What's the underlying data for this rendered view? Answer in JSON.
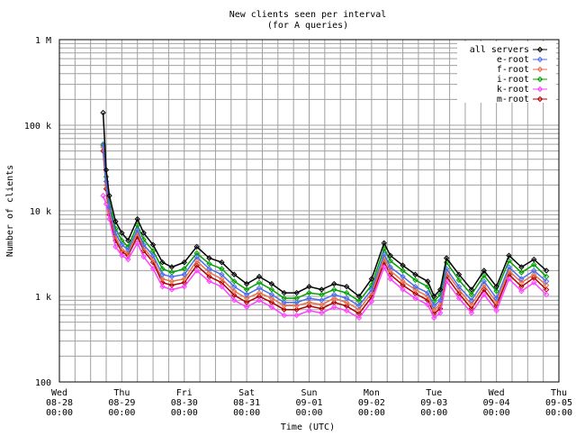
{
  "chart_data": {
    "type": "line",
    "title": "New clients seen per interval",
    "subtitle": "(for A queries)",
    "xlabel": "Time (UTC)",
    "ylabel": "Number of clients",
    "yscale": "log",
    "ylim": [
      100,
      1000000
    ],
    "xlim": [
      "2013-08-28 00:00",
      "2013-09-05 00:00"
    ],
    "grid": true,
    "legend_position": "top-right",
    "y_ticks": [
      {
        "value": 100,
        "label": "100"
      },
      {
        "value": 1000,
        "label": "1 k"
      },
      {
        "value": 10000,
        "label": "10 k"
      },
      {
        "value": 100000,
        "label": "100 k"
      },
      {
        "value": 1000000,
        "label": "1 M"
      }
    ],
    "x_ticks": [
      {
        "day": 0,
        "lines": [
          "Wed",
          "08-28",
          "00:00"
        ]
      },
      {
        "day": 1,
        "lines": [
          "Thu",
          "08-29",
          "00:00"
        ]
      },
      {
        "day": 2,
        "lines": [
          "Fri",
          "08-30",
          "00:00"
        ]
      },
      {
        "day": 3,
        "lines": [
          "Sat",
          "08-31",
          "00:00"
        ]
      },
      {
        "day": 4,
        "lines": [
          "Sun",
          "09-01",
          "00:00"
        ]
      },
      {
        "day": 5,
        "lines": [
          "Mon",
          "09-02",
          "00:00"
        ]
      },
      {
        "day": 6,
        "lines": [
          "Tue",
          "09-03",
          "00:00"
        ]
      },
      {
        "day": 7,
        "lines": [
          "Wed",
          "09-04",
          "00:00"
        ]
      },
      {
        "day": 8,
        "lines": [
          "Thu",
          "09-05",
          "00:00"
        ]
      }
    ],
    "x_days": [
      0.7,
      0.75,
      0.8,
      0.9,
      1.0,
      1.1,
      1.25,
      1.35,
      1.5,
      1.65,
      1.8,
      2.0,
      2.2,
      2.4,
      2.6,
      2.8,
      3.0,
      3.2,
      3.4,
      3.6,
      3.8,
      4.0,
      4.2,
      4.4,
      4.6,
      4.8,
      5.0,
      5.2,
      5.3,
      5.5,
      5.7,
      5.9,
      6.0,
      6.1,
      6.2,
      6.4,
      6.6,
      6.8,
      7.0,
      7.2,
      7.4,
      7.6,
      7.8
    ],
    "series": [
      {
        "name": "all servers",
        "color": "#000000",
        "values": [
          140000,
          30000,
          15000,
          7500,
          5500,
          4500,
          8000,
          5500,
          4000,
          2500,
          2200,
          2500,
          3800,
          2800,
          2500,
          1800,
          1400,
          1700,
          1400,
          1100,
          1100,
          1300,
          1200,
          1400,
          1300,
          1000,
          1600,
          4200,
          3000,
          2300,
          1800,
          1500,
          1000,
          1200,
          2800,
          1800,
          1200,
          2000,
          1300,
          3000,
          2200,
          2700,
          2000
        ]
      },
      {
        "name": "e-root",
        "color": "#4a6cf0",
        "values": [
          60000,
          22000,
          11000,
          5500,
          4000,
          3500,
          6000,
          4000,
          3000,
          1800,
          1700,
          1800,
          2900,
          2100,
          1800,
          1300,
          1050,
          1250,
          1050,
          850,
          850,
          950,
          900,
          1050,
          950,
          780,
          1200,
          3100,
          2200,
          1700,
          1300,
          1100,
          780,
          900,
          2100,
          1300,
          900,
          1500,
          950,
          2200,
          1600,
          2000,
          1500
        ]
      },
      {
        "name": "f-root",
        "color": "#e8704a",
        "values": [
          55000,
          20000,
          10000,
          5000,
          3500,
          3200,
          5500,
          3700,
          2700,
          1600,
          1500,
          1600,
          2600,
          1900,
          1600,
          1150,
          950,
          1100,
          950,
          780,
          780,
          850,
          800,
          950,
          850,
          700,
          1100,
          2800,
          2000,
          1500,
          1200,
          1000,
          700,
          800,
          1900,
          1200,
          800,
          1350,
          850,
          2000,
          1450,
          1800,
          1350
        ]
      },
      {
        "name": "i-root",
        "color": "#00a000",
        "values": [
          58000,
          25000,
          12500,
          6200,
          4500,
          3800,
          6800,
          4600,
          3400,
          2100,
          1900,
          2100,
          3200,
          2400,
          2100,
          1500,
          1200,
          1450,
          1200,
          950,
          950,
          1100,
          1050,
          1200,
          1100,
          880,
          1350,
          3600,
          2600,
          2000,
          1550,
          1300,
          880,
          1050,
          2500,
          1550,
          1050,
          1750,
          1150,
          2600,
          1900,
          2350,
          1700
        ]
      },
      {
        "name": "k-root",
        "color": "#ff40ff",
        "values": [
          15000,
          12000,
          8000,
          3800,
          3000,
          2700,
          4200,
          2900,
          2100,
          1300,
          1200,
          1300,
          2000,
          1500,
          1300,
          900,
          750,
          900,
          750,
          600,
          600,
          680,
          640,
          750,
          680,
          560,
          870,
          2200,
          1600,
          1200,
          950,
          800,
          560,
          640,
          1500,
          950,
          640,
          1050,
          680,
          1600,
          1150,
          1450,
          1050
        ]
      },
      {
        "name": "m-root",
        "color": "#b00000",
        "values": [
          50000,
          18000,
          9000,
          4500,
          3300,
          3000,
          5000,
          3400,
          2500,
          1450,
          1350,
          1450,
          2300,
          1700,
          1450,
          1030,
          850,
          1000,
          850,
          700,
          700,
          770,
          720,
          850,
          770,
          630,
          980,
          2500,
          1800,
          1350,
          1080,
          900,
          630,
          720,
          1700,
          1080,
          720,
          1200,
          770,
          1800,
          1300,
          1650,
          1200
        ]
      }
    ]
  }
}
